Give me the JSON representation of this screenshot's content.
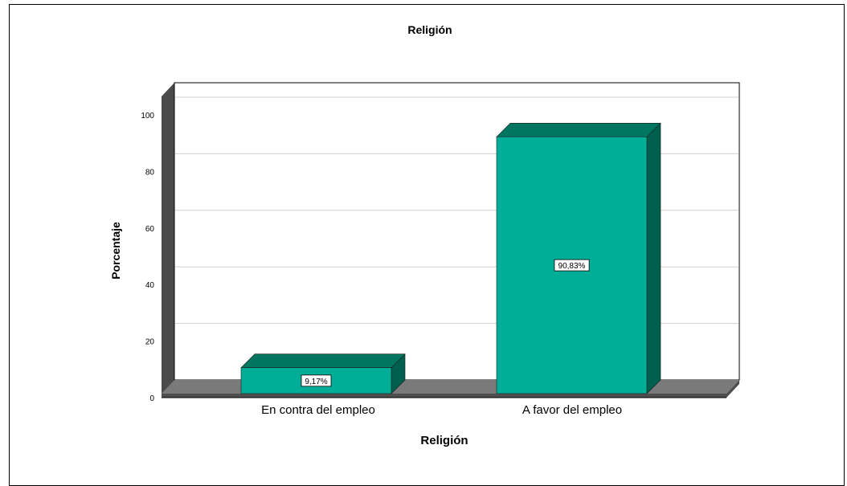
{
  "colors": {
    "bar_front": "#00ad96",
    "bar_top": "#00755f",
    "bar_side": "#005f4d",
    "floor": "#7a7a7a",
    "floor_front": "#4e4e4e",
    "wall_side": "#4a4a4a",
    "grid": "#cfcfcf"
  },
  "chart_data": {
    "type": "bar",
    "title": "Religión",
    "xlabel": "Religión",
    "ylabel": "Porcentaje",
    "categories": [
      "En contra del empleo",
      "A favor del empleo"
    ],
    "values": [
      9.17,
      90.83
    ],
    "data_labels": [
      "9,17%",
      "90,83%"
    ],
    "y_ticks": [
      0,
      20,
      40,
      60,
      80,
      100
    ],
    "ylim": [
      0,
      100
    ],
    "grid": true,
    "style": "3d"
  }
}
